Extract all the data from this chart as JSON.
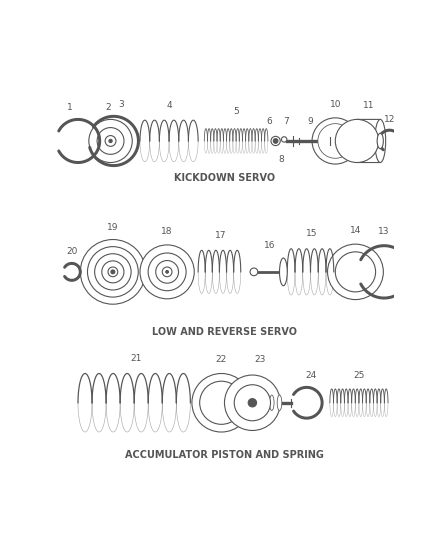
{
  "background_color": "#ffffff",
  "line_color": "#555555",
  "line_width": 0.8,
  "font_size_num": 6.5,
  "font_size_section": 7.0,
  "sections": [
    {
      "label": "KICKDOWN SERVO",
      "y_label": 0.765
    },
    {
      "label": "LOW AND REVERSE SERVO",
      "y_label": 0.455
    },
    {
      "label": "ACCUMULATOR PISTON AND SPRING",
      "y_label": 0.115
    }
  ]
}
